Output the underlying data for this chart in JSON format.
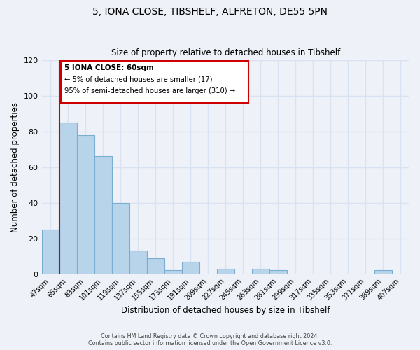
{
  "title": "5, IONA CLOSE, TIBSHELF, ALFRETON, DE55 5PN",
  "subtitle": "Size of property relative to detached houses in Tibshelf",
  "xlabel": "Distribution of detached houses by size in Tibshelf",
  "ylabel": "Number of detached properties",
  "bar_color": "#b8d4eb",
  "bar_edge_color": "#7aaed0",
  "categories": [
    "47sqm",
    "65sqm",
    "83sqm",
    "101sqm",
    "119sqm",
    "137sqm",
    "155sqm",
    "173sqm",
    "191sqm",
    "209sqm",
    "227sqm",
    "245sqm",
    "263sqm",
    "281sqm",
    "299sqm",
    "317sqm",
    "335sqm",
    "353sqm",
    "371sqm",
    "389sqm",
    "407sqm"
  ],
  "values": [
    25,
    85,
    78,
    66,
    40,
    13,
    9,
    2,
    7,
    0,
    3,
    0,
    3,
    2,
    0,
    0,
    0,
    0,
    0,
    2,
    0
  ],
  "ylim": [
    0,
    120
  ],
  "yticks": [
    0,
    20,
    40,
    60,
    80,
    100,
    120
  ],
  "marker_color": "#cc0000",
  "annotation_lines": [
    "5 IONA CLOSE: 60sqm",
    "← 5% of detached houses are smaller (17)",
    "95% of semi-detached houses are larger (310) →"
  ],
  "footer_lines": [
    "Contains HM Land Registry data © Crown copyright and database right 2024.",
    "Contains public sector information licensed under the Open Government Licence v3.0."
  ],
  "background_color": "#eef2f8",
  "grid_color": "#d8e2f0",
  "annotation_box_color": "#ffffff",
  "annotation_box_edge": "#cc0000"
}
